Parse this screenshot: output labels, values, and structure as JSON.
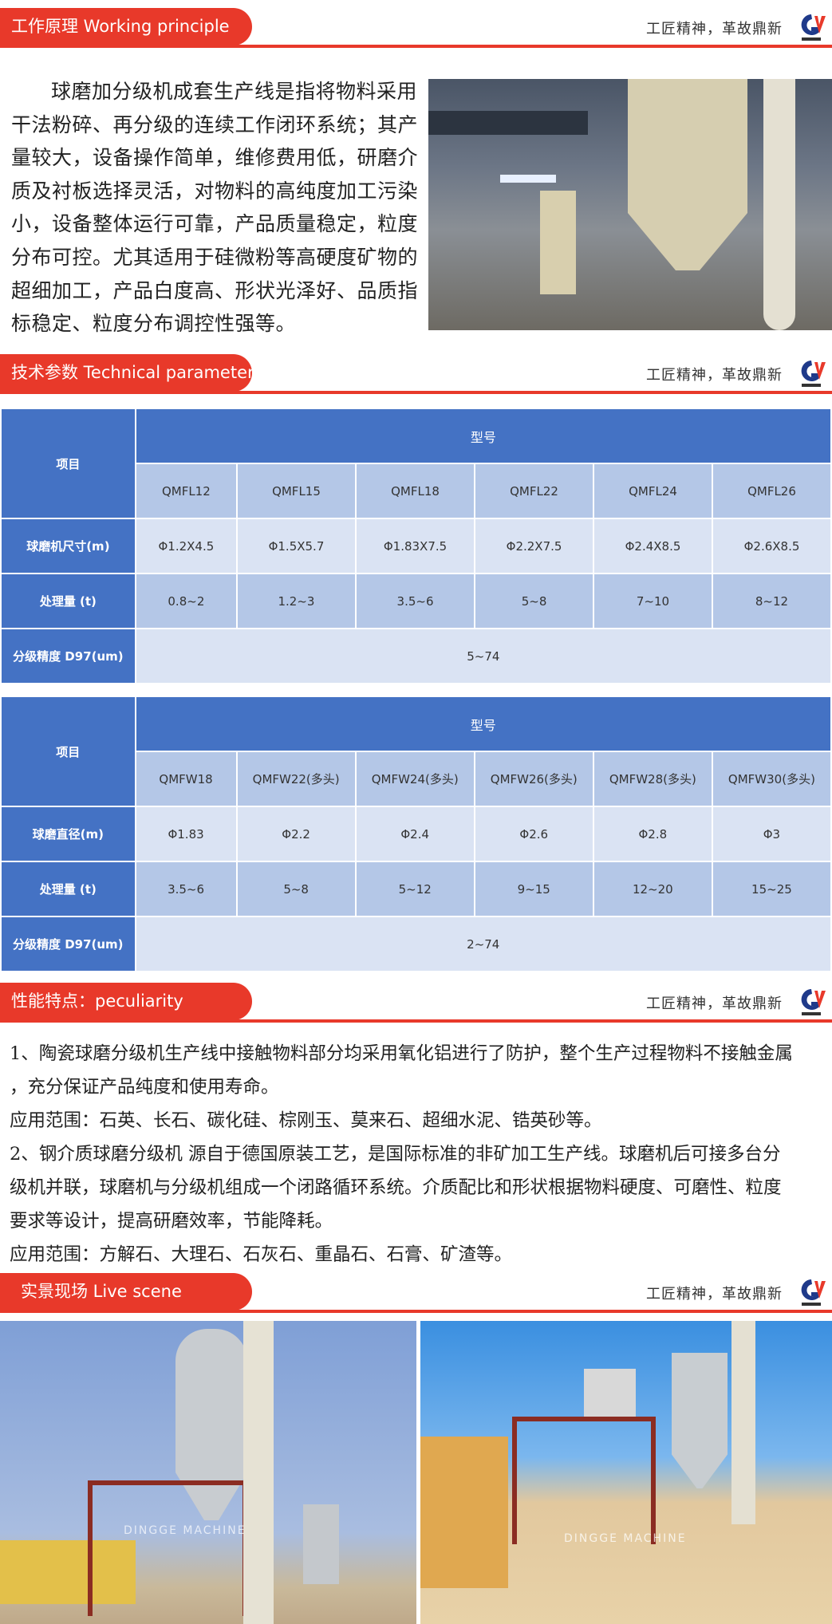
{
  "slogan": "工匠精神，革故鼎新",
  "colors": {
    "accent_red": "#e8392a",
    "table_header": "#4472c4",
    "table_mid": "#b4c7e7",
    "table_light": "#dae3f3"
  },
  "sections": {
    "working": {
      "title": "工作原理  Working principle"
    },
    "technical": {
      "title": "技术参数 Technical parameter"
    },
    "peculiarity": {
      "title": "性能特点：peculiarity"
    },
    "live": {
      "title": "实景现场    Live scene"
    }
  },
  "working_text": "球磨加分级机成套生产线是指将物料采用干法粉碎、再分级的连续工作闭环系统；其产量较大，设备操作简单，维修费用低，研磨介质及衬板选择灵活，对物料的高纯度加工污染小，设备整体运行可靠，产品质量稳定，粒度分布可控。尤其适用于硅微粉等高硬度矿物的超细加工，产品白度高、形状光泽好、品质指标稳定、粒度分布调控性强等。",
  "table1": {
    "item_header": "项目",
    "model_header": "型号",
    "models": [
      "QMFL12",
      "QMFL15",
      "QMFL18",
      "QMFL22",
      "QMFL24",
      "QMFL26"
    ],
    "rows": [
      {
        "label": "球磨机尺寸(m)",
        "values": [
          "Φ1.2X4.5",
          "Φ1.5X5.7",
          "Φ1.83X7.5",
          "Φ2.2X7.5",
          "Φ2.4X8.5",
          "Φ2.6X8.5"
        ]
      },
      {
        "label": "处理量 (t)",
        "values": [
          "0.8~2",
          "1.2~3",
          "3.5~6",
          "5~8",
          "7~10",
          "8~12"
        ]
      }
    ],
    "precision_label": "分级精度 D97(um)",
    "precision_value": "5~74"
  },
  "table2": {
    "item_header": "项目",
    "model_header": "型号",
    "models": [
      "QMFW18",
      "QMFW22(多头)",
      "QMFW24(多头)",
      "QMFW26(多头)",
      "QMFW28(多头)",
      "QMFW30(多头)"
    ],
    "rows": [
      {
        "label": "球磨直径(m)",
        "values": [
          "Φ1.83",
          "Φ2.2",
          "Φ2.4",
          "Φ2.6",
          "Φ2.8",
          "Φ3"
        ]
      },
      {
        "label": "处理量 (t)",
        "values": [
          "3.5~6",
          "5~8",
          "5~12",
          "9~15",
          "12~20",
          "15~25"
        ]
      }
    ],
    "precision_label": "分级精度 D97(um)",
    "precision_value": "2~74"
  },
  "peculiarity_lines": [
    "1、陶瓷球磨分级机生产线中接触物料部分均采用氧化铝进行了防护，整个生产过程物料不接触金属",
    "，充分保证产品纯度和使用寿命。",
    "应用范围：石英、长石、碳化硅、棕刚玉、莫来石、超细水泥、锆英砂等。",
    "2、钢介质球磨分级机 源自于德国原装工艺，是国际标准的非矿加工生产线。球磨机后可接多台分",
    "级机并联，球磨机与分级机组成一个闭路循环系统。介质配比和形状根据物料硬度、可磨性、粒度",
    "要求等设计，提高研磨效率，节能降耗。",
    "应用范围：方解石、大理石、石灰石、重晶石、石膏、矿渣等。"
  ],
  "watermark": "DINGGE MACHINE"
}
